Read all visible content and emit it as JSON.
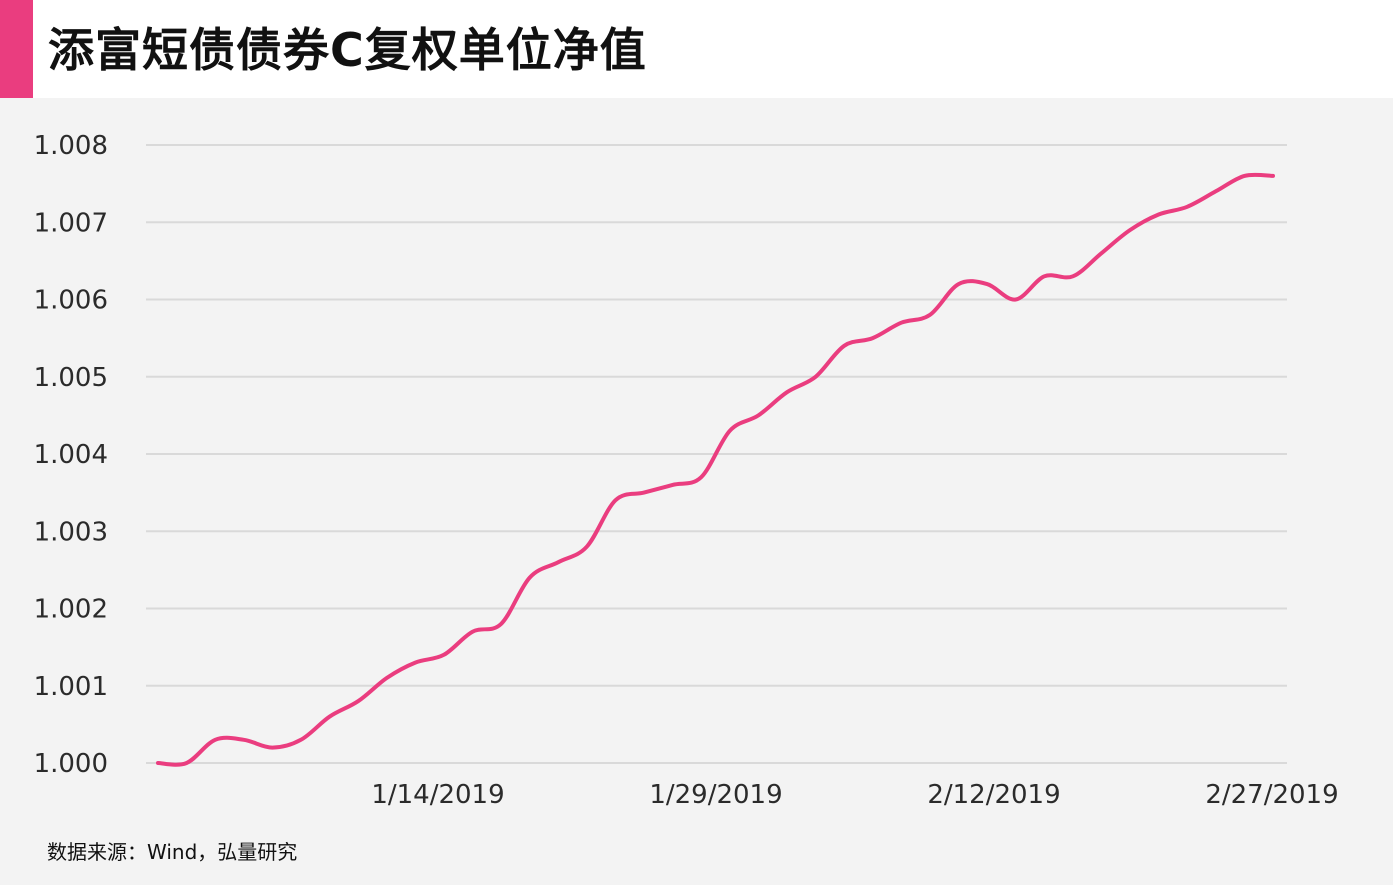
{
  "title": "添富短债债券C复权单位净值",
  "source": "数据来源：Wind，弘量研究",
  "colors": {
    "accent": "#ea3d7f",
    "line": "#ea3d7f",
    "grid": "#d9d9d9",
    "panel": "#f3f3f3"
  },
  "chart_data": {
    "type": "line",
    "title": "添富短债债券C复权单位净值",
    "xlabel": "",
    "ylabel": "",
    "ylim": [
      1.0,
      1.008
    ],
    "yticks": [
      "1.000",
      "1.001",
      "1.002",
      "1.003",
      "1.004",
      "1.005",
      "1.006",
      "1.007",
      "1.008"
    ],
    "xticks": [
      "1/14/2019",
      "1/29/2019",
      "2/12/2019",
      "2/27/2019"
    ],
    "grid": true,
    "legend": "none",
    "series": [
      {
        "values": [
          1.0,
          1.0,
          1.0003,
          1.0003,
          1.0002,
          1.0003,
          1.0006,
          1.0008,
          1.0011,
          1.0013,
          1.0014,
          1.0017,
          1.0018,
          1.0024,
          1.0026,
          1.0028,
          1.0034,
          1.0035,
          1.0036,
          1.0037,
          1.0043,
          1.0045,
          1.0048,
          1.005,
          1.0054,
          1.0055,
          1.0057,
          1.0058,
          1.0062,
          1.0062,
          1.006,
          1.0063,
          1.0063,
          1.0066,
          1.0069,
          1.0071,
          1.0072,
          1.0074,
          1.0076,
          1.0076
        ]
      }
    ]
  }
}
